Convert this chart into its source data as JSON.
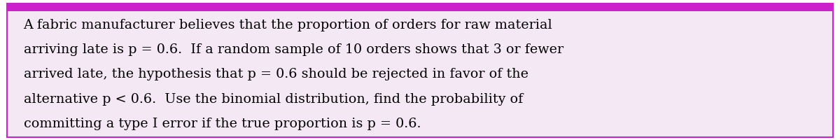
{
  "text_lines": [
    "A fabric manufacturer believes that the proportion of orders for raw material",
    "arriving late is p = 0.6.  If a random sample of 10 orders shows that 3 or fewer",
    "arrived late, the hypothesis that p = 0.6 should be rejected in favor of the",
    "alternative p < 0.6.  Use the binomial distribution, find the probability of",
    "committing a type I error if the true proportion is p = 0.6."
  ],
  "background_color": "#ffffff",
  "inner_bg_color": "#f5e8f5",
  "border_color": "#cc22cc",
  "top_bar_color": "#cc22cc",
  "text_color": "#000000",
  "font_size": 13.8,
  "fig_width": 12.0,
  "fig_height": 2.01,
  "dpi": 100
}
